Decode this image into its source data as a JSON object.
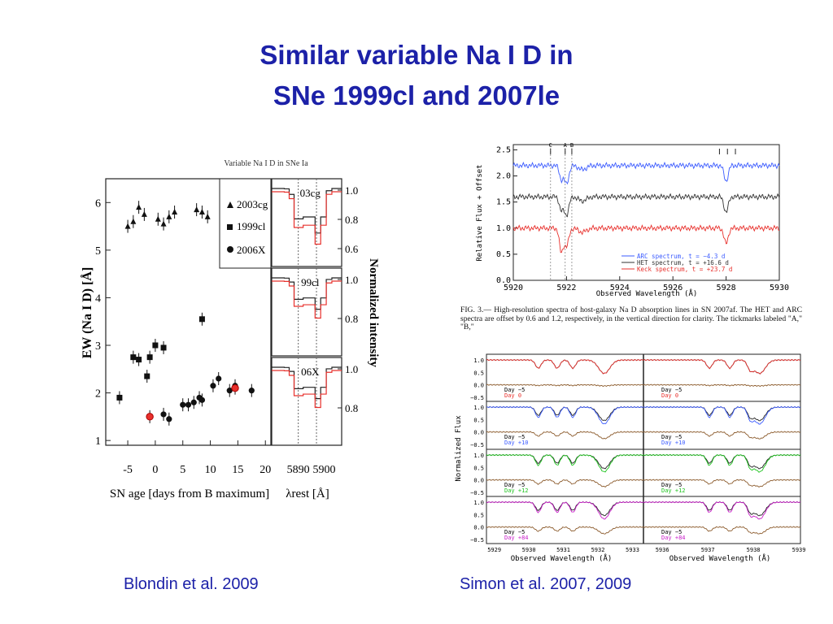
{
  "slide": {
    "title_line1": "Similar variable Na I D in",
    "title_line2": "SNe 1999cl and 2007le",
    "caption_left": "Blondin et al. 2009",
    "caption_right": "Simon et al. 2007, 2009"
  },
  "colors": {
    "title": "#1c21a8",
    "arc": "#3b5bff",
    "het": "#333333",
    "keck": "#e8302c",
    "green": "#1fc41f",
    "magenta": "#c81ec8",
    "brown": "#8b5a2b"
  },
  "chart_data": [
    {
      "type": "scatter",
      "title": "Variable Na I D in SNe Ia",
      "xlabel": "SN age  [days from B maximum]",
      "ylabel": "EW (Na I D)  [Å]",
      "xlim": [
        -9,
        21
      ],
      "ylim": [
        0.9,
        6.5
      ],
      "xticks": [
        "-5",
        "0",
        "5",
        "10",
        "15",
        "20"
      ],
      "yticks": [
        "1",
        "2",
        "3",
        "4",
        "5",
        "6"
      ],
      "legend_position": "top-right",
      "series": [
        {
          "name": "2003cg",
          "marker": "triangle",
          "x": [
            -5.0,
            -4.0,
            -3.0,
            -2.0,
            0.5,
            1.5,
            2.5,
            3.5,
            7.5,
            8.5,
            9.5
          ],
          "y": [
            5.5,
            5.6,
            5.9,
            5.75,
            5.65,
            5.55,
            5.7,
            5.8,
            5.85,
            5.8,
            5.7
          ]
        },
        {
          "name": "1999cl",
          "marker": "square",
          "x": [
            -6.5,
            -4.0,
            -3.0,
            -1.5,
            -1.0,
            0.0,
            1.5,
            8.5
          ],
          "y": [
            1.9,
            2.75,
            2.7,
            2.35,
            2.75,
            3.0,
            2.95,
            3.55
          ]
        },
        {
          "name": "2006X",
          "marker": "circle",
          "x": [
            1.5,
            2.5,
            5.0,
            6.0,
            7.0,
            8.0,
            8.5,
            10.5,
            11.5,
            13.5,
            14.5,
            17.5
          ],
          "y": [
            1.55,
            1.45,
            1.75,
            1.75,
            1.8,
            1.9,
            1.85,
            2.15,
            2.3,
            2.05,
            2.15,
            2.05
          ]
        },
        {
          "name": "",
          "marker": "red-circle",
          "x": [
            -1.0,
            14.5
          ],
          "y": [
            1.5,
            2.1
          ]
        }
      ],
      "side_panels": {
        "ylabel": "Normalized intensity",
        "xlabel": "λrest  [Å]",
        "xticks": [
          "5890",
          "5900"
        ],
        "panels": [
          {
            "label": "03cg",
            "yticks": [
              "1.0",
              "0.8",
              "0.6"
            ]
          },
          {
            "label": "99cl",
            "yticks": [
              "1.0",
              "0.8"
            ]
          },
          {
            "label": "06X",
            "yticks": [
              "1.0",
              "0.8"
            ]
          }
        ]
      }
    },
    {
      "type": "line",
      "xlabel": "Observed Wavelength (Å)",
      "ylabel": "Relative Flux + Offset",
      "xlim": [
        5920,
        5930
      ],
      "ylim": [
        0.0,
        2.6
      ],
      "xticks": [
        "5920",
        "5922",
        "5924",
        "5926",
        "5928",
        "5930"
      ],
      "yticks": [
        "0.0",
        "0.5",
        "1.0",
        "1.5",
        "2.0",
        "2.5"
      ],
      "tick_marks": [
        "C",
        "A",
        "B"
      ],
      "series": [
        {
          "name": "ARC spectrum, t = −4.3 d",
          "color": "#3b5bff",
          "offset": 2.2
        },
        {
          "name": "HET spectrum, t = +16.6 d",
          "color": "#333333",
          "offset": 1.6
        },
        {
          "name": "Keck spectrum, t = +23.7 d",
          "color": "#e8302c",
          "offset": 1.0
        }
      ],
      "caption": "FIG. 3.— High-resolution spectra of host-galaxy Na D absorption lines in SN 2007af. The HET and ARC spectra are offset by 0.6 and 1.2, respectively, in the vertical direction for clarity. The tickmarks labeled \"A,\" \"B,\""
    },
    {
      "type": "line",
      "ylabel": "Normalized Flux",
      "xlabel_left": "Observed Wavelength (Å)",
      "xlabel_right": "Observed Wavelength (Å)",
      "xticks_left": [
        "5929",
        "5930",
        "5931",
        "5932",
        "5933"
      ],
      "xticks_right": [
        "5936",
        "5937",
        "5938",
        "5939"
      ],
      "yticks": [
        "1.0",
        "0.5",
        "0.0",
        "−0.5"
      ],
      "rows": [
        {
          "legend": [
            "Day −5",
            "Day 0"
          ],
          "color": "#e8302c"
        },
        {
          "legend": [
            "Day −5",
            "Day +10"
          ],
          "color": "#3b5bff"
        },
        {
          "legend": [
            "Day −5",
            "Day +12"
          ],
          "color": "#1fc41f"
        },
        {
          "legend": [
            "Day −5",
            "Day +84"
          ],
          "color": "#c81ec8"
        }
      ]
    }
  ]
}
